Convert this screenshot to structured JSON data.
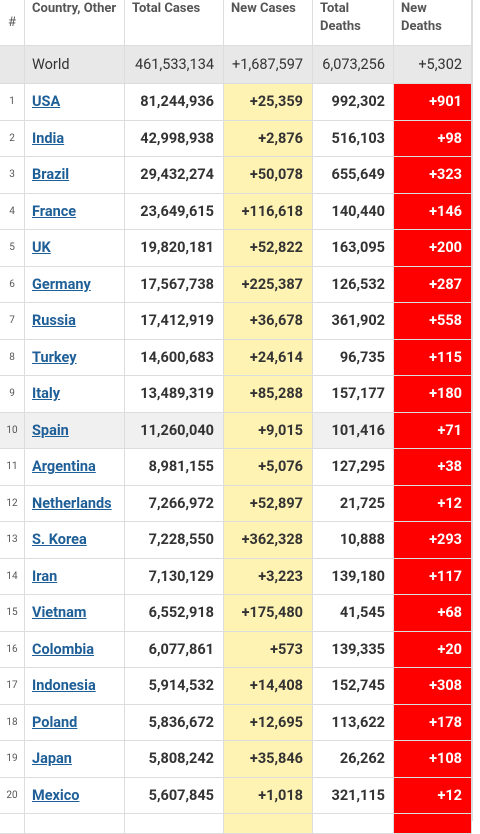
{
  "table": {
    "header": [
      "#",
      "Country, Other",
      "Total Cases",
      "New Cases",
      "Total Deaths",
      "New Deaths"
    ],
    "world": [
      "World",
      "461,533,134",
      "+1,687,597",
      "6,073,256",
      "+5,302"
    ],
    "rows": [
      [
        "1",
        "USA",
        "81,244,936",
        "+25,359",
        "992,302",
        "+901"
      ],
      [
        "2",
        "India",
        "42,998,938",
        "+2,876",
        "516,103",
        "+98"
      ],
      [
        "3",
        "Brazil",
        "29,432,274",
        "+50,078",
        "655,649",
        "+323"
      ],
      [
        "4",
        "France",
        "23,649,615",
        "+116,618",
        "140,440",
        "+146"
      ],
      [
        "5",
        "UK",
        "19,820,181",
        "+52,822",
        "163,095",
        "+200"
      ],
      [
        "6",
        "Germany",
        "17,567,738",
        "+225,387",
        "126,532",
        "+287"
      ],
      [
        "7",
        "Russia",
        "17,412,919",
        "+36,678",
        "361,902",
        "+558"
      ],
      [
        "8",
        "Turkey",
        "14,600,683",
        "+24,614",
        "96,735",
        "+115"
      ],
      [
        "9",
        "Italy",
        "13,489,319",
        "+85,288",
        "157,177",
        "+180"
      ],
      [
        "10",
        "Spain",
        "11,260,040",
        "+9,015",
        "101,416",
        "+71"
      ],
      [
        "11",
        "Argentina",
        "8,981,155",
        "+5,076",
        "127,295",
        "+38"
      ],
      [
        "12",
        "Netherlands",
        "7,266,972",
        "+52,897",
        "21,725",
        "+12"
      ],
      [
        "13",
        "S. Korea",
        "7,228,550",
        "+362,328",
        "10,888",
        "+293"
      ],
      [
        "14",
        "Iran",
        "7,130,129",
        "+3,223",
        "139,180",
        "+117"
      ],
      [
        "15",
        "Vietnam",
        "6,552,918",
        "+175,480",
        "41,545",
        "+68"
      ],
      [
        "16",
        "Colombia",
        "6,077,861",
        "+573",
        "139,335",
        "+20"
      ],
      [
        "17",
        "Indonesia",
        "5,914,532",
        "+14,408",
        "152,745",
        "+308"
      ],
      [
        "18",
        "Poland",
        "5,836,672",
        "+12,695",
        "113,622",
        "+178"
      ],
      [
        "19",
        "Japan",
        "5,808,242",
        "+35,846",
        "26,262",
        "+108"
      ],
      [
        "20",
        "Mexico",
        "5,607,845",
        "+1,018",
        "321,115",
        "+12"
      ]
    ]
  }
}
